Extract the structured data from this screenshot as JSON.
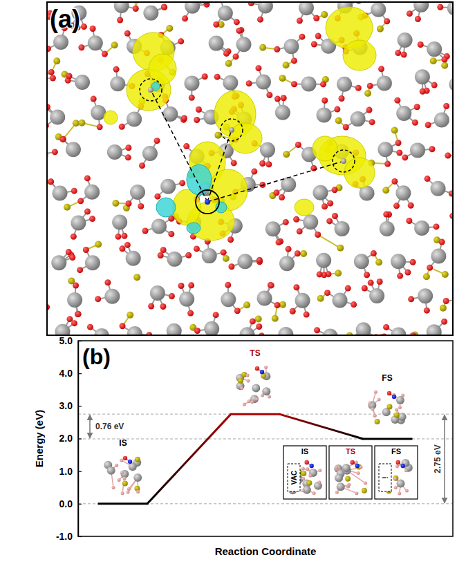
{
  "panel_a": {
    "panel_label": "(a)"
  },
  "chart_data": {
    "type": "line",
    "panel_label": "(b)",
    "categories": [
      "IS",
      "TS",
      "FS"
    ],
    "values": [
      0.0,
      2.75,
      1.99
    ],
    "colors": [
      "#000000",
      "#b00000",
      "#000000"
    ],
    "ylim": [
      -1,
      5
    ],
    "yticks": [
      {
        "value": -1,
        "label": "-1.0"
      },
      {
        "value": 0,
        "label": "0.0"
      },
      {
        "value": 1,
        "label": "1.0"
      },
      {
        "value": 2,
        "label": "2.0"
      },
      {
        "value": 3,
        "label": "3.0"
      },
      {
        "value": 4,
        "label": "4.0"
      },
      {
        "value": 5,
        "label": "5.0"
      }
    ],
    "y_label": "Energy (eV)",
    "x_label": "Reaction Coordinate",
    "grid": false,
    "tick_labels": "y",
    "annotations": [
      {
        "text": "0.76 eV",
        "value": 0.76
      },
      {
        "text": "2.75 eV",
        "value": 2.75
      }
    ],
    "insets": [
      {
        "label": "IS",
        "marker_text": "VAC"
      },
      {
        "label": "TS"
      },
      {
        "label": "FS",
        "marker_text": "!"
      }
    ]
  }
}
